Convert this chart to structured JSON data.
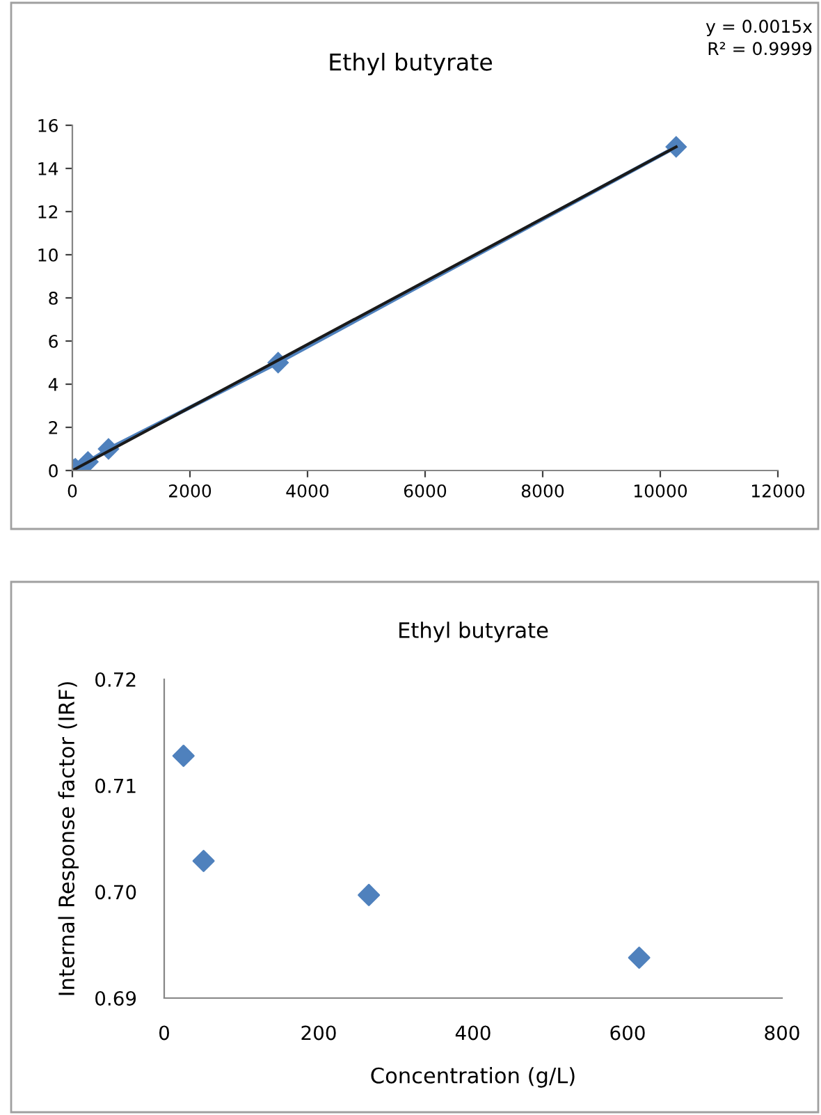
{
  "chart_data": [
    {
      "type": "scatter",
      "title": "Ethyl butyrate",
      "annotations": [
        "y = 0.0015x",
        "R² = 0.9999"
      ],
      "series": [
        {
          "type": "line",
          "marker": "diamond",
          "color": "#4f81bd",
          "x": [
            0,
            25,
            51,
            265,
            615,
            3500,
            10270
          ],
          "values": [
            0,
            0.04,
            0.08,
            0.4,
            1,
            5,
            15
          ]
        },
        {
          "type": "line",
          "marker": "none",
          "color": "#1a1a1a",
          "x": [
            0,
            10270
          ],
          "values": [
            0,
            15
          ]
        }
      ],
      "xlim": [
        0,
        12000
      ],
      "xticks": [
        0,
        2000,
        4000,
        6000,
        8000,
        10000,
        12000
      ],
      "ylim": [
        0,
        16
      ],
      "yticks": [
        0,
        2,
        4,
        6,
        8,
        10,
        12,
        14,
        16
      ],
      "grid": false,
      "legend": false
    },
    {
      "type": "scatter",
      "title": "Ethyl butyrate",
      "xlabel": "Concentration (g/L)",
      "ylabel": "Internal Response factor (IRF)",
      "marker": "diamond",
      "series": [
        {
          "color": "#4f81bd",
          "x": [
            25,
            51,
            265,
            615
          ],
          "values": [
            0.7128,
            0.7029,
            0.6997,
            0.6938
          ]
        }
      ],
      "xlim": [
        0,
        800
      ],
      "xticks": [
        0,
        200,
        400,
        600,
        800
      ],
      "ylim": [
        0.69,
        0.72
      ],
      "yticks": [
        {
          "value": 0.69,
          "label": "0.69"
        },
        {
          "value": 0.7,
          "label": "0.70"
        },
        {
          "value": 0.71,
          "label": "0.71"
        },
        {
          "value": 0.72,
          "label": "0.72"
        }
      ],
      "grid": false,
      "legend": false
    }
  ]
}
